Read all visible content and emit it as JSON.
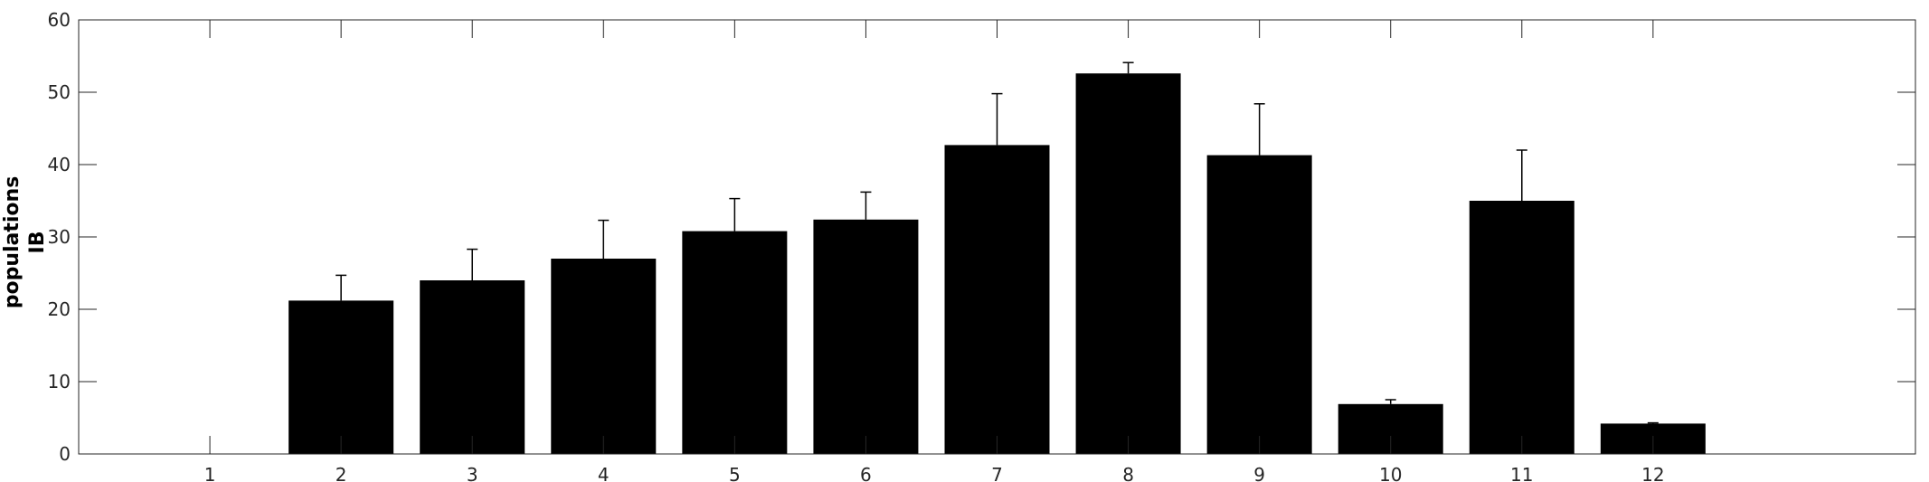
{
  "chart_data": {
    "type": "bar",
    "title": "",
    "xlabel": "",
    "ylabel": [
      "populations",
      "IB"
    ],
    "categories": [
      "1",
      "2",
      "3",
      "4",
      "5",
      "6",
      "7",
      "8",
      "9",
      "10",
      "11",
      "12"
    ],
    "values": [
      0,
      21.2,
      24.0,
      27.0,
      30.8,
      32.4,
      42.7,
      52.6,
      41.3,
      6.9,
      35.0,
      4.2
    ],
    "errors": [
      0,
      3.5,
      4.3,
      5.3,
      4.5,
      3.8,
      7.1,
      1.5,
      7.1,
      0.6,
      7.0,
      0.1
    ],
    "ylim": [
      0,
      60
    ],
    "yticks": [
      "0",
      "10",
      "20",
      "30",
      "40",
      "50",
      "60"
    ],
    "xlim": [
      0,
      14
    ],
    "bar_color": "#000000",
    "axis_color": "#262626",
    "grid": false,
    "legend": "none"
  }
}
